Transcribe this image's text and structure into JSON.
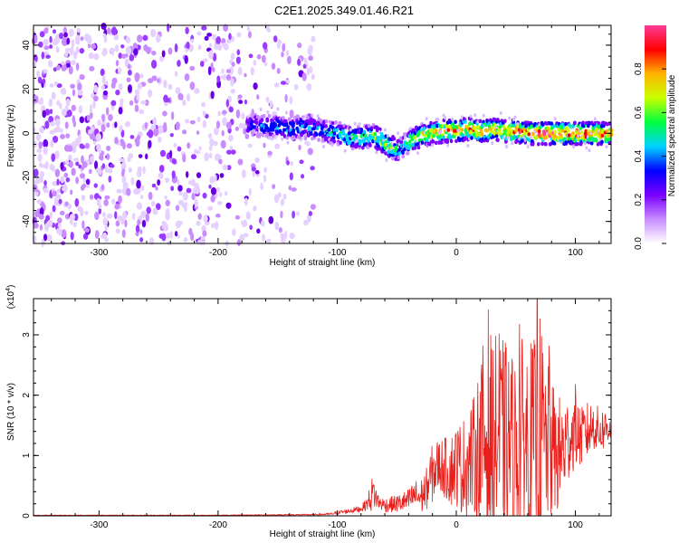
{
  "title": "C2E1.2025.349.01.46.R21",
  "chart_data": [
    {
      "type": "heatmap",
      "xlabel": "Height of straight line (km)",
      "ylabel": "Frequency (Hz)",
      "xlim": [
        -355,
        130
      ],
      "ylim": [
        -50,
        49
      ],
      "xticks": [
        -300,
        -200,
        -100,
        0,
        100
      ],
      "xtick_labels": [
        "-300",
        "-200",
        "-100",
        "0",
        "100"
      ],
      "yticks": [
        -40,
        -20,
        0,
        20,
        40
      ],
      "ytick_labels": [
        "-40",
        "-20",
        "0",
        "20",
        "40"
      ],
      "colorbar": {
        "label": "Normalized spectral amplitude",
        "range": [
          0,
          1
        ],
        "ticks": [
          0.0,
          0.2,
          0.4,
          0.6,
          0.8
        ],
        "tick_labels": [
          "0.0",
          "0.2",
          "0.4",
          "0.6",
          "0.8"
        ],
        "colormap": [
          "#ffffff",
          "#c88cff",
          "#7a00ff",
          "#0000ff",
          "#00d2ff",
          "#00ff40",
          "#c8ff00",
          "#ffb400",
          "#ff0000",
          "#ff3c96"
        ]
      },
      "noise_region": {
        "x": [
          -355,
          -120
        ],
        "y": [
          -50,
          49
        ]
      },
      "signal_trace": {
        "x": [
          -175,
          -160,
          -150,
          -140,
          -130,
          -120,
          -110,
          -100,
          -90,
          -80,
          -70,
          -60,
          -55,
          -50,
          -45,
          -40,
          -30,
          -20,
          -10,
          0,
          10,
          20,
          30,
          40,
          50,
          60,
          70,
          80,
          90,
          100,
          110,
          120,
          130
        ],
        "freq": [
          4,
          3,
          3,
          2,
          3,
          2,
          1,
          0,
          -2,
          -2,
          -1,
          -4,
          -6,
          -8,
          -6,
          -4,
          -1,
          0,
          1,
          1,
          2,
          1,
          2,
          1,
          1,
          0,
          0,
          0,
          0,
          0,
          0,
          0,
          0
        ],
        "amplitude": [
          0.35,
          0.4,
          0.45,
          0.4,
          0.45,
          0.4,
          0.45,
          0.5,
          0.55,
          0.55,
          0.6,
          0.7,
          0.75,
          0.5,
          0.45,
          0.6,
          0.7,
          0.75,
          0.8,
          0.85,
          0.8,
          0.85,
          0.75,
          0.8,
          0.9,
          0.9,
          0.95,
          0.95,
          0.95,
          0.95,
          0.9,
          0.9,
          0.85
        ]
      }
    },
    {
      "type": "line",
      "xlabel": "Height of straight line (km)",
      "ylabel": "SNR (10 * v/v)",
      "scale_label": "(x10",
      "scale_exp": "4",
      "scale_suffix": ")",
      "xlim": [
        -355,
        130
      ],
      "ylim": [
        0,
        3.6
      ],
      "xticks": [
        -300,
        -200,
        -100,
        0,
        100
      ],
      "xtick_labels": [
        "-300",
        "-200",
        "-100",
        "0",
        "100"
      ],
      "yticks": [
        0,
        1,
        2,
        3
      ],
      "ytick_labels": [
        "0",
        "1",
        "2",
        "3"
      ],
      "series": [
        {
          "name": "SNR",
          "color": "#e8201c",
          "x": [
            -355,
            -300,
            -200,
            -120,
            -105,
            -100,
            -90,
            -80,
            -75,
            -72,
            -70,
            -65,
            -60,
            -50,
            -40,
            -35,
            -30,
            -25,
            -20,
            -15,
            -10,
            -5,
            0,
            5,
            10,
            15,
            20,
            25,
            30,
            35,
            40,
            45,
            50,
            55,
            60,
            65,
            70,
            75,
            80,
            85,
            90,
            95,
            100,
            105,
            110,
            115,
            120,
            125,
            130
          ],
          "base": [
            0.01,
            0.01,
            0.01,
            0.02,
            0.03,
            0.05,
            0.08,
            0.12,
            0.2,
            0.3,
            0.4,
            0.22,
            0.18,
            0.2,
            0.25,
            0.35,
            0.3,
            0.45,
            0.7,
            0.85,
            0.8,
            0.75,
            0.85,
            0.8,
            0.9,
            1.0,
            1.1,
            1.3,
            1.2,
            1.3,
            1.15,
            1.2,
            1.1,
            1.25,
            1.2,
            1.3,
            1.2,
            1.15,
            1.1,
            1.0,
            1.1,
            1.3,
            1.4,
            1.3,
            1.4,
            1.5,
            1.4,
            1.45,
            1.5
          ],
          "spread": [
            0.005,
            0.005,
            0.005,
            0.01,
            0.02,
            0.03,
            0.04,
            0.06,
            0.1,
            0.25,
            0.3,
            0.12,
            0.12,
            0.15,
            0.2,
            0.25,
            0.3,
            0.35,
            0.5,
            0.45,
            0.5,
            0.6,
            0.7,
            0.8,
            0.9,
            1.0,
            1.5,
            1.9,
            1.8,
            1.7,
            1.8,
            1.6,
            1.5,
            1.7,
            1.8,
            1.6,
            2.2,
            1.5,
            1.2,
            1.0,
            0.9,
            0.7,
            0.6,
            0.5,
            0.5,
            0.4,
            0.4,
            0.35,
            0.3
          ]
        }
      ],
      "peaks": [
        {
          "x": 27,
          "y": 3.42
        },
        {
          "x": 36,
          "y": 3.02
        },
        {
          "x": 53,
          "y": 3.18
        },
        {
          "x": 68,
          "y": 3.6
        },
        {
          "x": 78,
          "y": 2.82
        },
        {
          "x": 100,
          "y": 2.18
        }
      ]
    }
  ]
}
